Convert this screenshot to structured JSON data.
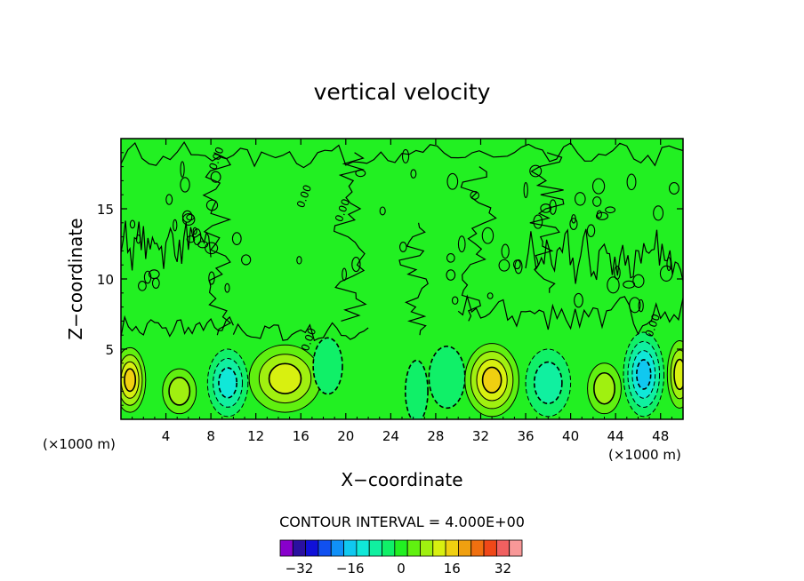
{
  "chart_data": {
    "type": "heatmap",
    "title": "vertical velocity",
    "xlabel": "X−coordinate",
    "ylabel": "Z−coordinate",
    "x_unit_left": "(×1000 m)",
    "x_unit_right": "(×1000 m)",
    "xlim": [
      0,
      50
    ],
    "ylim": [
      0,
      20
    ],
    "x_ticks": [
      4,
      8,
      12,
      16,
      20,
      24,
      28,
      32,
      36,
      40,
      44,
      48
    ],
    "y_ticks": [
      5,
      10,
      15
    ],
    "contour_interval_text": "CONTOUR INTERVAL = 4.000E+00",
    "contour_label": "0.00",
    "background_color": "#22f022",
    "colorbar": {
      "colors": [
        "#8800cc",
        "#2a10a0",
        "#1010d8",
        "#1050f0",
        "#1090f8",
        "#10c8f0",
        "#10e8d8",
        "#10f0a0",
        "#10f068",
        "#22f022",
        "#60f010",
        "#a0f010",
        "#d8f010",
        "#f0d010",
        "#f0a010",
        "#f07010",
        "#f04818",
        "#f06060",
        "#f89898"
      ],
      "tick_labels": [
        "−32",
        "−16",
        "0",
        "16",
        "32"
      ]
    },
    "features": [
      {
        "type": "updraft",
        "cx": 0.8,
        "cz": 2.8,
        "rx": 1.4,
        "rz": 2.3,
        "level": 16
      },
      {
        "type": "updraft",
        "cx": 5.2,
        "cz": 2.0,
        "rx": 1.5,
        "rz": 1.6,
        "level": 8
      },
      {
        "type": "downdraft",
        "cx": 9.5,
        "cz": 2.6,
        "rx": 1.8,
        "rz": 2.4,
        "level": -12
      },
      {
        "type": "updraft",
        "cx": 14.6,
        "cz": 2.9,
        "rx": 3.2,
        "rz": 2.4,
        "level": 12
      },
      {
        "type": "downdraft",
        "cx": 18.4,
        "cz": 3.8,
        "rx": 1.3,
        "rz": 2.0,
        "level": -4
      },
      {
        "type": "downdraft",
        "cx": 26.3,
        "cz": 2.0,
        "rx": 1.0,
        "rz": 2.2,
        "level": -4
      },
      {
        "type": "downdraft",
        "cx": 29.0,
        "cz": 3.0,
        "rx": 1.6,
        "rz": 2.2,
        "level": -4
      },
      {
        "type": "updraft",
        "cx": 33.0,
        "cz": 2.8,
        "rx": 2.4,
        "rz": 2.6,
        "level": 16
      },
      {
        "type": "downdraft",
        "cx": 38.0,
        "cz": 2.6,
        "rx": 2.0,
        "rz": 2.4,
        "level": -8
      },
      {
        "type": "updraft",
        "cx": 43.0,
        "cz": 2.2,
        "rx": 1.5,
        "rz": 1.8,
        "level": 8
      },
      {
        "type": "downdraft",
        "cx": 46.5,
        "cz": 3.2,
        "rx": 1.8,
        "rz": 3.0,
        "level": -16
      },
      {
        "type": "updraft",
        "cx": 49.7,
        "cz": 3.2,
        "rx": 1.1,
        "rz": 2.4,
        "level": 12
      }
    ]
  }
}
